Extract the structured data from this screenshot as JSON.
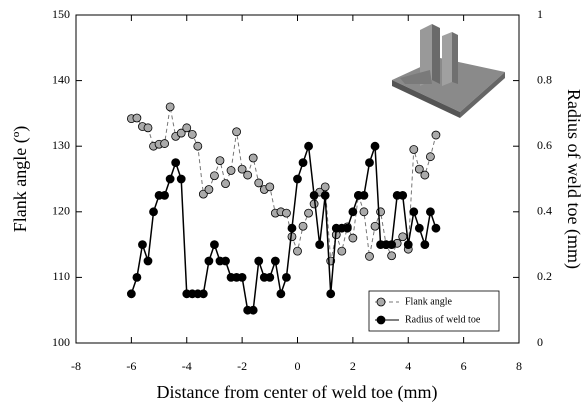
{
  "chart_data": {
    "type": "line",
    "xlabel": "Distance from center of weld toe (mm)",
    "ylabel": "Flank angle (º)",
    "y2label": "Radius of weld toe (mm)",
    "x": [
      -6,
      -5.8,
      -5.6,
      -5.4,
      -5.2,
      -5,
      -4.8,
      -4.6,
      -4.4,
      -4.2,
      -4,
      -3.8,
      -3.6,
      -3.4,
      -3.2,
      -3,
      -2.8,
      -2.6,
      -2.4,
      -2.2,
      -2,
      -1.8,
      -1.6,
      -1.4,
      -1.2,
      -1,
      -0.8,
      -0.6,
      -0.4,
      -0.2,
      0,
      0.2,
      0.4,
      0.6,
      0.8,
      1,
      1.2,
      1.4,
      1.6,
      1.8,
      2,
      2.2,
      2.4,
      2.6,
      2.8,
      3,
      3.2,
      3.4,
      3.6,
      3.8,
      4,
      4.2,
      4.4,
      4.6,
      4.8,
      5
    ],
    "series": [
      {
        "name": "Flank angle",
        "color": "#aaaaaa",
        "dashed": true,
        "values": [
          134.2,
          134.3,
          133,
          132.8,
          130,
          130.3,
          130.4,
          136,
          131.5,
          132,
          132.8,
          131.8,
          130,
          122.7,
          123.4,
          125.5,
          127.8,
          124.3,
          126.3,
          132.2,
          126.5,
          125.6,
          128.2,
          124.4,
          123.4,
          123.8,
          119.8,
          120,
          119.8,
          116.2,
          114,
          117.8,
          119.8,
          121.2,
          123,
          123.8,
          112.5,
          116.5,
          114,
          117.7,
          116,
          122.5,
          120,
          113.2,
          117.8,
          120,
          115,
          113.3,
          115.2,
          116.2,
          114.3,
          129.5,
          126.5,
          125.6,
          128.4,
          131.7
        ]
      },
      {
        "name": "Radius of weld toe",
        "color": "#000000",
        "dashed": false,
        "axis": "y2",
        "values": [
          0.15,
          0.2,
          0.3,
          0.25,
          0.4,
          0.45,
          0.45,
          0.5,
          0.55,
          0.5,
          0.15,
          0.15,
          0.15,
          0.15,
          0.25,
          0.3,
          0.25,
          0.25,
          0.2,
          0.2,
          0.2,
          0.1,
          0.1,
          0.25,
          0.2,
          0.2,
          0.25,
          0.15,
          0.2,
          0.35,
          0.5,
          0.55,
          0.6,
          0.45,
          0.3,
          0.45,
          0.15,
          0.35,
          0.35,
          0.35,
          0.4,
          0.45,
          0.45,
          0.55,
          0.6,
          0.3,
          0.3,
          0.3,
          0.45,
          0.45,
          0.3,
          0.4,
          0.35,
          0.3,
          0.4,
          0.35
        ]
      }
    ],
    "xlim": [
      -8,
      8
    ],
    "xticks": [
      -8,
      -6,
      -4,
      -2,
      0,
      2,
      4,
      6,
      8
    ],
    "ylim": [
      100,
      150
    ],
    "yticks": [
      100,
      110,
      120,
      130,
      140,
      150
    ],
    "y2lim": [
      0,
      1
    ],
    "y2ticks": [
      0,
      0.2,
      0.4,
      0.6,
      0.8,
      1
    ],
    "legend": "lower right"
  }
}
